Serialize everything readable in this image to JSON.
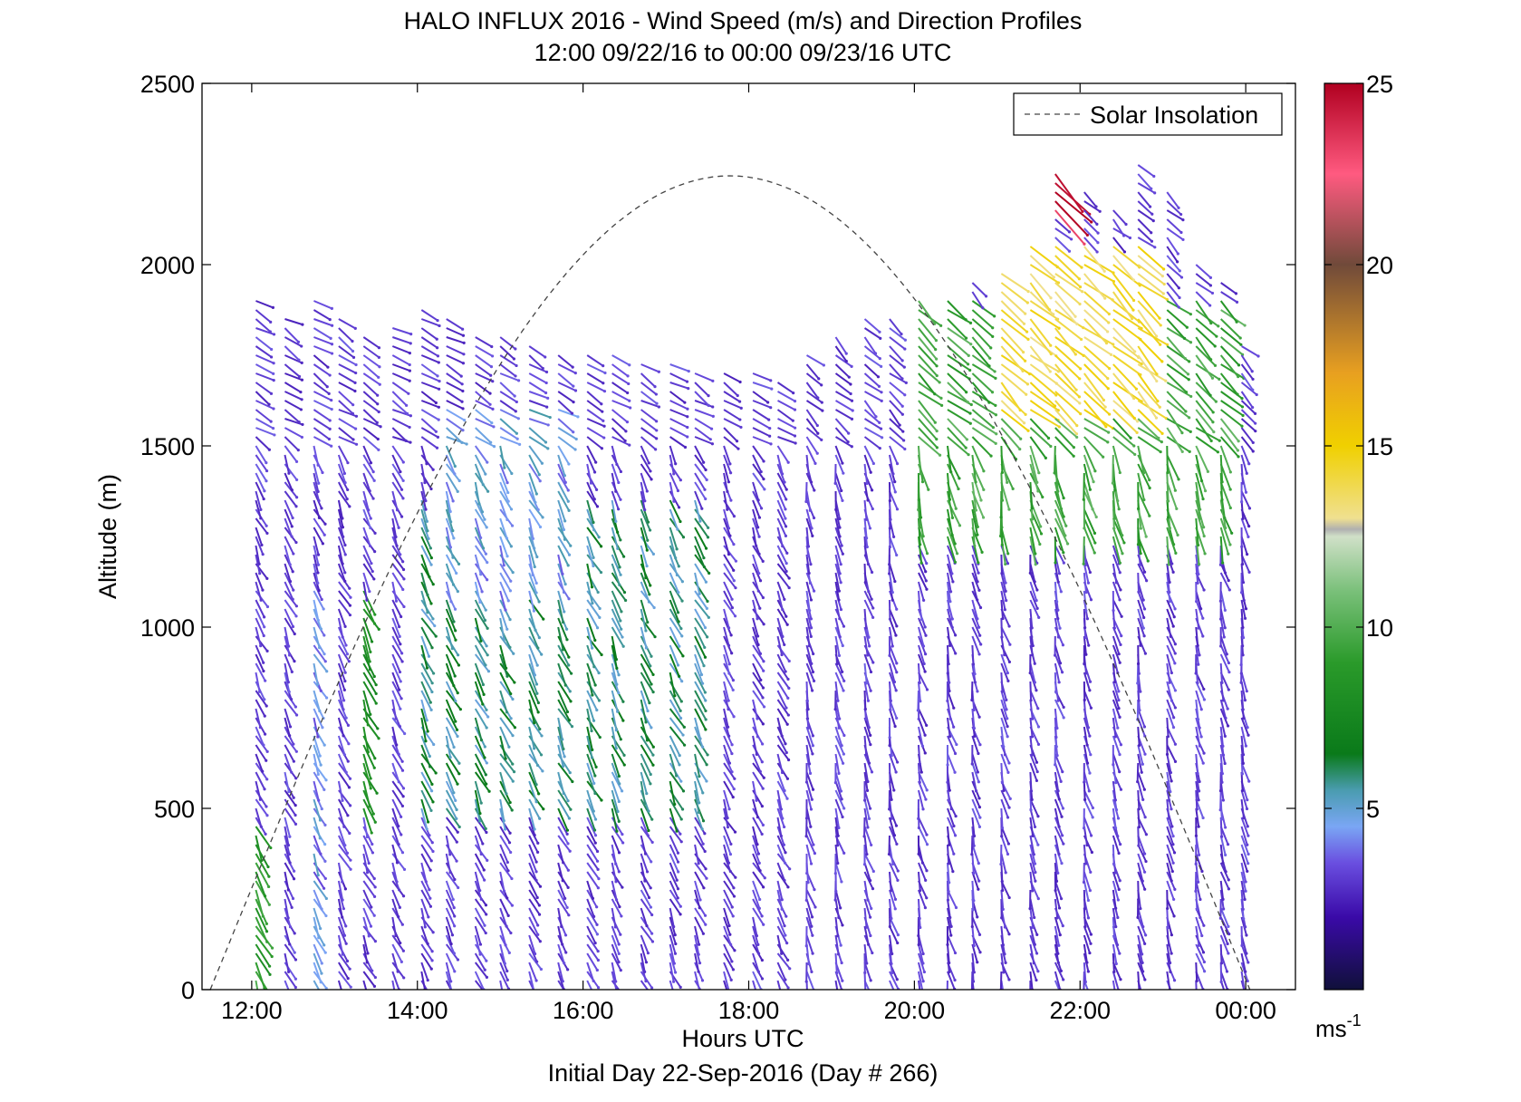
{
  "chart_data": {
    "type": "quiver",
    "title": "HALO INFLUX 2016 - Wind Speed (m/s) and Direction Profiles",
    "subtitle": "12:00 09/22/16 to 00:00 09/23/16  UTC",
    "xlabel": "Hours UTC",
    "ylabel": "Altitude (m)",
    "footer": "Initial Day 22-Sep-2016 (Day # 266)",
    "xlim": [
      11.4,
      24.6
    ],
    "ylim": [
      0,
      2500
    ],
    "x_ticks": [
      12,
      14,
      16,
      18,
      20,
      22,
      24
    ],
    "x_tick_labels": [
      "12:00",
      "14:00",
      "16:00",
      "18:00",
      "20:00",
      "22:00",
      "00:00"
    ],
    "y_ticks": [
      0,
      500,
      1000,
      1500,
      2000,
      2500
    ],
    "y_tick_labels": [
      "0",
      "500",
      "1000",
      "1500",
      "2000",
      "2500"
    ],
    "legend": {
      "entry": "Solar Insolation",
      "position": "top-right",
      "style": "dashed"
    },
    "colorbar": {
      "min": 0,
      "max": 25,
      "ticks": [
        5,
        10,
        15,
        20,
        25
      ],
      "tick_labels": [
        "5",
        "10",
        "15",
        "20",
        "25"
      ],
      "unit_base": "ms",
      "unit_exp": "-1",
      "stops": [
        [
          0,
          "#10103a"
        ],
        [
          2,
          "#3a0aa8"
        ],
        [
          3.5,
          "#6a4fe0"
        ],
        [
          4.5,
          "#7aa6f4"
        ],
        [
          5.5,
          "#4a9cb0"
        ],
        [
          6.5,
          "#0a7a1a"
        ],
        [
          9,
          "#2a9a2a"
        ],
        [
          11,
          "#7ac07a"
        ],
        [
          12.5,
          "#d0e0c8"
        ],
        [
          12.7,
          "#b0b0b0"
        ],
        [
          13,
          "#f0e090"
        ],
        [
          15,
          "#f0d000"
        ],
        [
          17,
          "#e8a020"
        ],
        [
          20,
          "#704a3a"
        ],
        [
          22.5,
          "#ff5a80"
        ],
        [
          25,
          "#b00020"
        ]
      ]
    },
    "solar_insolation": {
      "start_hour": 11.5,
      "peak_hour": 17.75,
      "end_hour": 24.05,
      "peak_altitude": 2245
    },
    "profile_hours": [
      12.05,
      12.4,
      12.75,
      13.05,
      13.35,
      13.7,
      14.05,
      14.35,
      14.7,
      15.0,
      15.35,
      15.7,
      16.05,
      16.35,
      16.7,
      17.05,
      17.35,
      17.7,
      18.05,
      18.35,
      18.7,
      19.05,
      19.4,
      19.7,
      20.05,
      20.4,
      20.7,
      21.05,
      21.4,
      21.7,
      22.05,
      22.4,
      22.7,
      23.05,
      23.4,
      23.7,
      23.95
    ],
    "profile_tops": [
      1900,
      1850,
      1900,
      1850,
      1820,
      1830,
      1880,
      1850,
      1820,
      1800,
      1780,
      1770,
      1760,
      1750,
      1740,
      1730,
      1720,
      1710,
      1700,
      1690,
      1750,
      1800,
      1850,
      1870,
      1900,
      1920,
      1950,
      1980,
      2050,
      2250,
      2200,
      2150,
      2280,
      2200,
      2000,
      1950,
      1780
    ],
    "sample_spacing_m": 25,
    "vector_scale": 0.005,
    "speed_field": [
      {
        "hours": [
          12.0,
          12.3
        ],
        "alts": [
          0,
          450
        ],
        "speed": 9
      },
      {
        "hours": [
          12.6,
          12.8
        ],
        "alts": [
          0,
          1100
        ],
        "speed": 4.3
      },
      {
        "hours": [
          13.1,
          13.3
        ],
        "alts": [
          0,
          850
        ],
        "speed": 6.5
      },
      {
        "hours": [
          13.1,
          13.5
        ],
        "alts": [
          500,
          1100
        ],
        "speed": 8
      },
      {
        "hours": [
          14.0,
          17.5
        ],
        "alts": [
          500,
          1350
        ],
        "speed": 5.8
      },
      {
        "hours": [
          14.3,
          16.0
        ],
        "alts": [
          1100,
          1600
        ],
        "speed": 4.6
      },
      {
        "hours": [
          20.0,
          23.9
        ],
        "alts": [
          1250,
          1900
        ],
        "speed": 9.5
      },
      {
        "hours": [
          21.0,
          23.0
        ],
        "alts": [
          1600,
          2050
        ],
        "speed": 14
      },
      {
        "hours": [
          21.6,
          21.8
        ],
        "alts": [
          2150,
          2300
        ],
        "speed": 24
      }
    ],
    "background_speed": 2.5
  }
}
